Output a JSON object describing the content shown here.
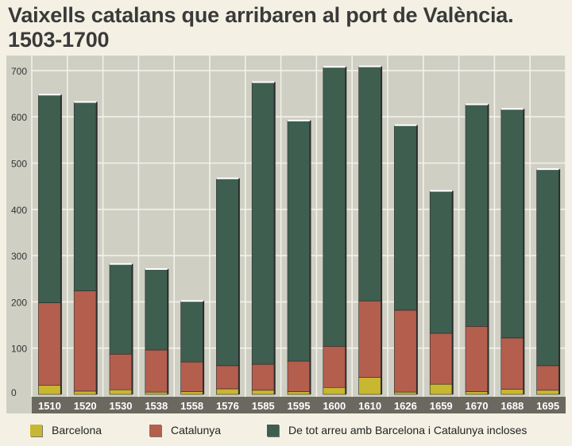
{
  "chart_data": {
    "type": "bar",
    "stacked": true,
    "title": "Vaixells catalans que arribaren al port de València.",
    "subtitle": "1503-1700",
    "categories": [
      "1510",
      "1520",
      "1530",
      "1538",
      "1558",
      "1576",
      "1585",
      "1595",
      "1600",
      "1610",
      "1626",
      "1659",
      "1670",
      "1688",
      "1695"
    ],
    "series": [
      {
        "name": "Barcelona",
        "color": "#c8b730",
        "values": [
          20,
          7,
          10,
          5,
          6,
          12,
          9,
          6,
          15,
          37,
          5,
          22,
          6,
          11,
          9
        ]
      },
      {
        "name": "Catalunya",
        "color": "#b45e4e",
        "values": [
          178,
          217,
          77,
          91,
          64,
          50,
          56,
          66,
          89,
          165,
          177,
          110,
          141,
          111,
          53
        ]
      },
      {
        "name": "De tot arreu amb Barcelona i Catalunya incloses",
        "color": "#3e5e4f",
        "values": [
          450,
          408,
          195,
          175,
          132,
          405,
          610,
          520,
          604,
          507,
          400,
          308,
          480,
          495,
          425
        ]
      }
    ],
    "totals": [
      648,
      632,
      282,
      271,
      202,
      467,
      675,
      592,
      708,
      709,
      582,
      440,
      627,
      617,
      487
    ],
    "yticks": [
      0,
      100,
      200,
      300,
      400,
      500,
      600,
      700
    ],
    "ylim": [
      0,
      720
    ],
    "grid": true,
    "legend_position": "bottom"
  }
}
